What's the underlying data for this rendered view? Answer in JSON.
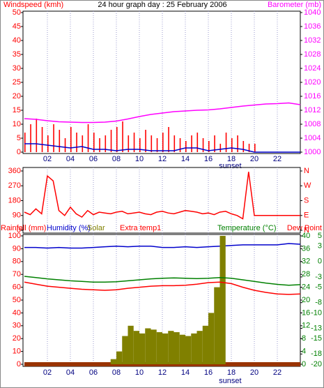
{
  "chart_data": [
    {
      "type": "line",
      "title": "24 hour graph day : 25 February 2006",
      "ylabel": "Windspeed (kmh)",
      "y2label": "Barometer (mb)",
      "xlim": [
        0,
        24
      ],
      "xticks": [
        {
          "value": 2,
          "label": "02"
        },
        {
          "value": 4,
          "label": "04"
        },
        {
          "value": 6,
          "label": "06"
        },
        {
          "value": 8,
          "label": "08"
        },
        10,
        12,
        14,
        16,
        18,
        20,
        22
      ],
      "ylim": [
        0,
        50
      ],
      "yticks": [
        0,
        5,
        10,
        15,
        20,
        25,
        30,
        35,
        40,
        45,
        50
      ],
      "y2lim": [
        1000,
        1040
      ],
      "y2ticks": [
        1000,
        1004,
        1008,
        1012,
        1016,
        1020,
        1024,
        1028,
        1032,
        1036,
        1040
      ],
      "annotation": {
        "text": "sunset",
        "x": 17.9
      },
      "grid": true,
      "series": [
        {
          "color": "#ff0000",
          "style": "bar",
          "x": [
            0,
            0.5,
            1,
            1.5,
            2,
            2.5,
            3,
            3.5,
            4,
            4.5,
            5,
            5.5,
            6,
            6.5,
            7,
            7.5,
            8,
            8.5,
            9,
            9.5,
            10,
            10.5,
            11,
            11.5,
            12,
            12.5,
            13,
            13.5,
            14,
            14.5,
            15,
            15.5,
            16,
            16.5,
            17,
            17.5,
            18,
            18.5,
            19,
            19.5,
            20
          ],
          "values": [
            7,
            10,
            12,
            9,
            6,
            10,
            8,
            5,
            9,
            7,
            6,
            10,
            7,
            5,
            6,
            8,
            9,
            11,
            6,
            7,
            5,
            8,
            6,
            5,
            7,
            9,
            6,
            5,
            4,
            6,
            7,
            5,
            4,
            6,
            3,
            7,
            5,
            6,
            4,
            3,
            3
          ]
        },
        {
          "color": "#0000cc",
          "style": "line",
          "x": [
            0,
            1,
            2,
            3,
            4,
            5,
            6,
            7,
            8,
            9,
            10,
            11,
            12,
            13,
            14,
            15,
            16,
            17,
            18,
            19,
            20,
            21,
            22,
            23,
            24
          ],
          "values": [
            3,
            3,
            2.5,
            2,
            1.5,
            2,
            1,
            1,
            0.5,
            1,
            1,
            0.5,
            0.5,
            0.5,
            1.5,
            1.5,
            0.5,
            1,
            1.5,
            1,
            0,
            0,
            0,
            0,
            0
          ]
        },
        {
          "color": "#ff00ff",
          "style": "line",
          "axis": "y2",
          "x": [
            0,
            1,
            2,
            3,
            4,
            5,
            6,
            7,
            8,
            9,
            10,
            11,
            12,
            13,
            14,
            15,
            16,
            17,
            18,
            19,
            20,
            21,
            22,
            23,
            24
          ],
          "values": [
            1009.6,
            1009.4,
            1009.0,
            1008.7,
            1008.6,
            1008.5,
            1008.5,
            1008.6,
            1008.9,
            1009.5,
            1010.2,
            1010.8,
            1011.2,
            1011.6,
            1011.8,
            1012.0,
            1012.1,
            1012.4,
            1012.8,
            1013.2,
            1013.5,
            1013.8,
            1013.9,
            1014.1,
            1013.6
          ]
        }
      ]
    },
    {
      "type": "line",
      "xlim": [
        0,
        24
      ],
      "xticks": [
        2,
        4,
        6,
        8,
        10,
        12,
        14,
        16,
        18,
        20,
        22
      ],
      "ylim": [
        0,
        360
      ],
      "yticks": [
        0,
        90,
        180,
        270,
        360
      ],
      "y2lim": [
        0,
        360
      ],
      "y2ticks": [
        {
          "value": 0,
          "label": "N"
        },
        {
          "value": 90,
          "label": "E"
        },
        {
          "value": 180,
          "label": "S"
        },
        {
          "value": 270,
          "label": "W"
        },
        {
          "value": 360,
          "label": "N"
        }
      ],
      "grid": true,
      "series": [
        {
          "color": "#ff0000",
          "style": "line",
          "x": [
            0,
            0.5,
            1,
            1.5,
            2,
            2.5,
            3,
            3.5,
            4,
            4.5,
            5,
            5.5,
            6,
            6.5,
            7,
            7.5,
            8,
            8.5,
            9,
            9.5,
            10,
            10.5,
            11,
            11.5,
            12,
            12.5,
            13,
            13.5,
            14,
            14.5,
            15,
            15.5,
            16,
            16.5,
            17,
            17.5,
            18,
            18.5,
            19,
            19.5,
            20,
            20.5,
            21,
            21.5,
            22,
            22.5,
            23,
            23.5,
            24
          ],
          "values": [
            110,
            95,
            130,
            100,
            330,
            300,
            120,
            90,
            140,
            100,
            80,
            120,
            95,
            110,
            105,
            100,
            110,
            115,
            100,
            105,
            110,
            100,
            95,
            110,
            115,
            105,
            100,
            110,
            120,
            115,
            110,
            100,
            105,
            95,
            110,
            115,
            100,
            90,
            70,
            355,
            90,
            90,
            90,
            90,
            90,
            90,
            90,
            90,
            90
          ]
        }
      ]
    },
    {
      "type": "line",
      "xlim": [
        0,
        24
      ],
      "xticks": [
        {
          "value": 2,
          "label": "02"
        },
        {
          "value": 4,
          "label": "04"
        },
        {
          "value": 6,
          "label": "06"
        },
        {
          "value": 8,
          "label": "08"
        },
        10,
        12,
        14,
        16,
        18,
        20,
        22
      ],
      "ylim": [
        0,
        100
      ],
      "yticks": [
        0,
        10,
        20,
        30,
        40,
        50,
        60,
        70,
        80,
        90,
        100
      ],
      "y2lim": [
        0,
        40
      ],
      "y2ticks": [
        0,
        4,
        8,
        12,
        16,
        20,
        24,
        28,
        32,
        36,
        40
      ],
      "y3lim": [
        -20,
        5
      ],
      "y3ticks": [
        -20,
        -18,
        -15,
        -13,
        -10,
        -8,
        -5,
        -3,
        0,
        3,
        5
      ],
      "annotation": {
        "text": "sunset",
        "x": 17.9
      },
      "grid": true,
      "series": [
        {
          "name": "Rainfall (mm)",
          "color": "#993300",
          "style": "thick",
          "x": [
            0,
            24
          ],
          "values": [
            0,
            0
          ]
        },
        {
          "name": "Humidity (%)",
          "color": "#0000cc",
          "style": "line",
          "x": [
            0,
            1,
            2,
            3,
            4,
            5,
            6,
            7,
            8,
            9,
            10,
            11,
            12,
            13,
            14,
            15,
            16,
            17,
            18,
            19,
            20,
            21,
            22,
            23,
            24
          ],
          "values": [
            91,
            91,
            90.5,
            91,
            90.5,
            90.5,
            91,
            91.5,
            92,
            91.5,
            92,
            92,
            91,
            91,
            91.5,
            91,
            91.5,
            92,
            92.5,
            93,
            93,
            93,
            93,
            94,
            93.5
          ]
        },
        {
          "name": "Solar",
          "color": "#808000",
          "style": "bar",
          "x": [
            7,
            7.5,
            8,
            8.5,
            9,
            9.5,
            10,
            10.5,
            11,
            11.5,
            12,
            12.5,
            13,
            13.5,
            14,
            14.5,
            15,
            15.5,
            16,
            16.5,
            17,
            17.5
          ],
          "values": [
            0,
            4,
            10,
            22,
            30,
            26,
            24,
            28,
            27,
            25,
            24,
            26,
            25,
            23,
            22,
            24,
            26,
            30,
            40,
            60,
            100,
            0
          ]
        },
        {
          "name": "Extra temp1",
          "color": "#ff0000"
        },
        {
          "name": "Temperature (°C)",
          "color": "#008000",
          "style": "line",
          "axis": "y2",
          "x": [
            0,
            1,
            2,
            3,
            4,
            5,
            6,
            7,
            8,
            9,
            10,
            11,
            12,
            13,
            14,
            15,
            16,
            17,
            18,
            19,
            20,
            21,
            22,
            23,
            24
          ],
          "values": [
            27.4,
            27.0,
            26.6,
            26.3,
            26.0,
            25.8,
            25.6,
            25.6,
            25.7,
            26.0,
            26.3,
            26.6,
            26.8,
            26.9,
            26.8,
            26.7,
            26.8,
            27.0,
            26.8,
            26.3,
            25.8,
            25.3,
            24.9,
            24.6,
            24.8
          ]
        },
        {
          "name": "Dew Point",
          "color": "#ff0000",
          "style": "line",
          "axis": "y3",
          "x": [
            0,
            1,
            2,
            3,
            4,
            5,
            6,
            7,
            8,
            9,
            10,
            11,
            12,
            13,
            14,
            15,
            16,
            17,
            18,
            19,
            20,
            21,
            22,
            23,
            24
          ],
          "values": [
            -4.0,
            -4.4,
            -4.8,
            -5.0,
            -5.2,
            -5.4,
            -5.5,
            -5.6,
            -5.5,
            -5.2,
            -5.0,
            -4.8,
            -4.7,
            -4.7,
            -4.6,
            -4.4,
            -4.1,
            -4.0,
            -4.3,
            -5.0,
            -5.6,
            -6.0,
            -6.3,
            -6.4,
            -6.3
          ]
        }
      ]
    }
  ]
}
